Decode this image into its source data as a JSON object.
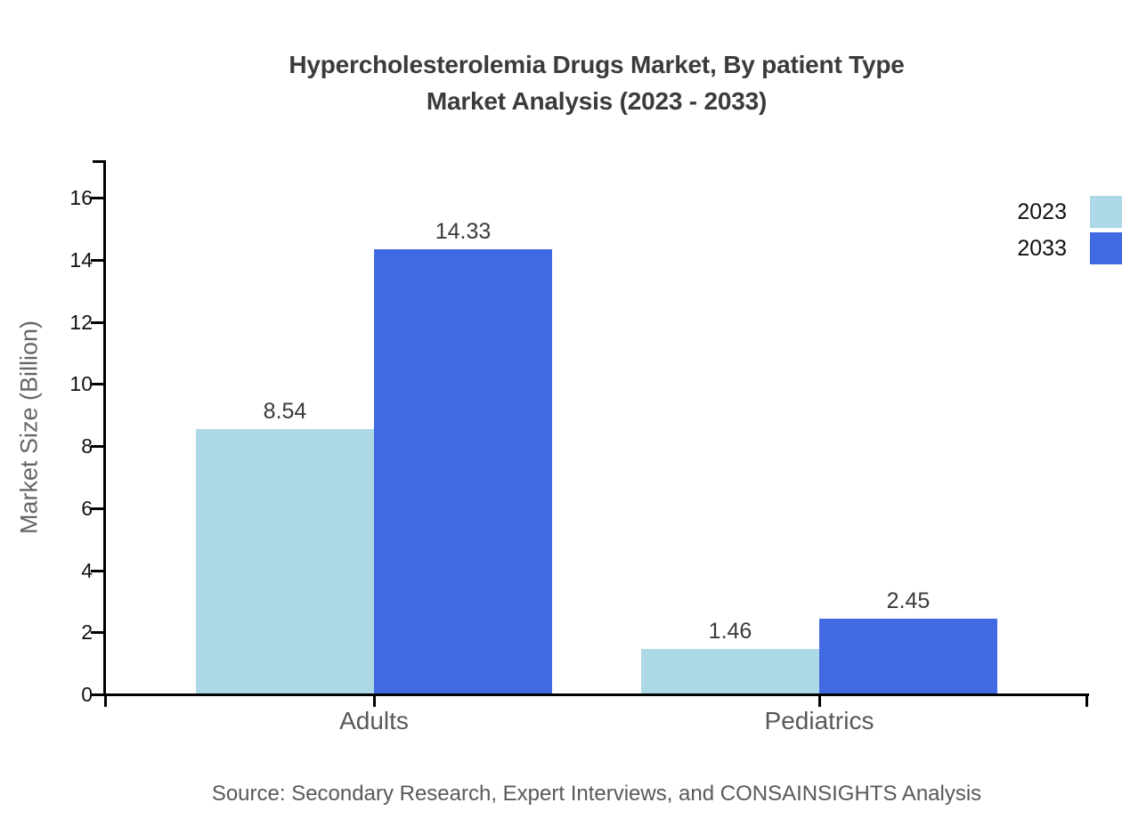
{
  "title": {
    "line1": "Hypercholesterolemia Drugs Market, By patient Type",
    "line2": "Market Analysis (2023 - 2033)"
  },
  "source": "Source: Secondary Research, Expert Interviews, and CONSAINSIGHTS Analysis",
  "colors": {
    "series_2023": "#ADD8E6",
    "series_2033": "#4169E1",
    "axis": "#000000",
    "title_text": "#3b3b3b",
    "tick_label_text": "#111111",
    "category_text": "#595959",
    "muted_text": "#666666"
  },
  "chart_data": {
    "type": "bar",
    "title": "Hypercholesterolemia Drugs Market, By patient Type Market Analysis (2023 - 2033)",
    "categories": [
      "Adults",
      "Pediatrics"
    ],
    "series": [
      {
        "name": "2023",
        "color": "#ADD8E6",
        "values": [
          8.54,
          1.46
        ]
      },
      {
        "name": "2033",
        "color": "#4169E1",
        "values": [
          14.33,
          2.45
        ]
      }
    ],
    "xlabel": "",
    "ylabel": "Market Size (Billion)",
    "ylim": [
      0,
      17.2
    ],
    "yticks": [
      0,
      2,
      4,
      6,
      8,
      10,
      12,
      14,
      16
    ],
    "grid": false,
    "legend_position": "top-right-outside",
    "value_labels": true,
    "value_label_format": "0.00"
  }
}
